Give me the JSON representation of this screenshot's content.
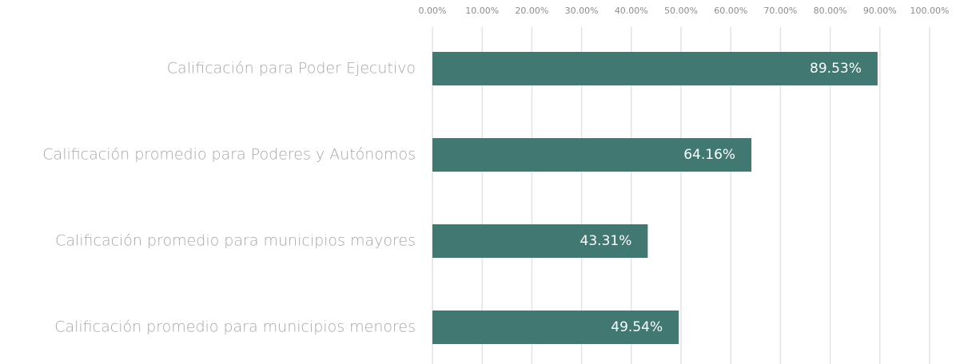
{
  "chart_data": {
    "type": "bar",
    "orientation": "horizontal",
    "categories": [
      "Calificación para Poder Ejecutivo",
      "Calificación promedio para Poderes y Autónomos",
      "Calificación promedio para municipios mayores",
      "Calificación promedio para municipios menores"
    ],
    "values": [
      89.53,
      64.16,
      43.31,
      49.54
    ],
    "value_labels": [
      "89.53%",
      "64.16%",
      "43.31%",
      "49.54%"
    ],
    "color": "#417872",
    "xlim": [
      0,
      100
    ],
    "xticks": [
      {
        "value": 0,
        "label": "0.00%"
      },
      {
        "value": 10,
        "label": "10.00%"
      },
      {
        "value": 20,
        "label": "20.00%"
      },
      {
        "value": 30,
        "label": "30.00%"
      },
      {
        "value": 40,
        "label": "40.00%"
      },
      {
        "value": 50,
        "label": "50.00%"
      },
      {
        "value": 60,
        "label": "60.00%"
      },
      {
        "value": 70,
        "label": "70.00%"
      },
      {
        "value": 80,
        "label": "80.00%"
      },
      {
        "value": 90,
        "label": "90.00%"
      },
      {
        "value": 100,
        "label": "100.00%"
      }
    ],
    "grid": true
  }
}
